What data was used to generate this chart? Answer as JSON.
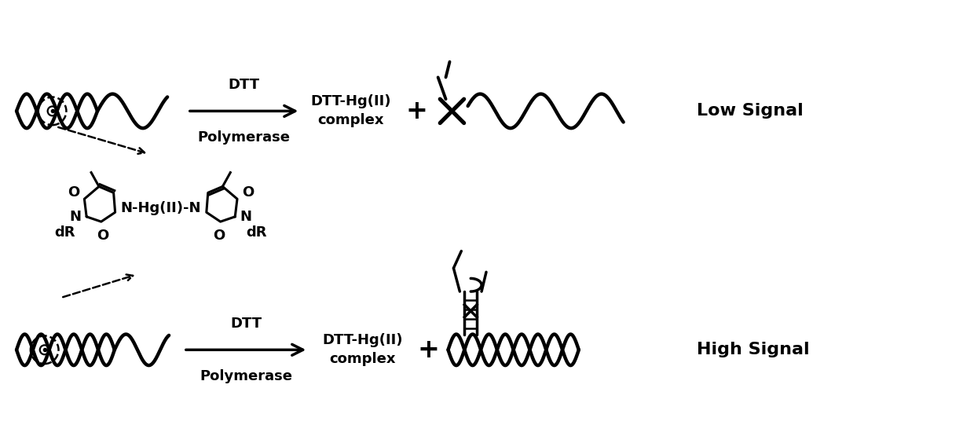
{
  "bg_color": "#ffffff",
  "text_color": "#000000",
  "top_arrow_label1": "DTT",
  "top_arrow_label2": "Polymerase",
  "bottom_arrow_label1": "DTT",
  "bottom_arrow_label2": "Polymerase",
  "top_product_label1": "DTT-Hg(II)",
  "top_product_label2": "complex",
  "bottom_product_label1": "DTT-Hg(II)",
  "bottom_product_label2": "complex",
  "plus_sign": "+",
  "low_signal": "Low Signal",
  "high_signal": "High Signal"
}
